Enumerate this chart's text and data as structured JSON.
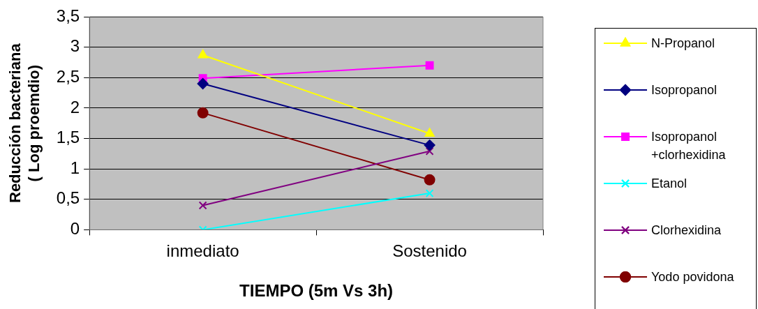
{
  "chart_data": {
    "type": "line",
    "xlabel": "TIEMPO (5m Vs 3h)",
    "ylabel": "Reducción bacteriana\n( Log proemdio)",
    "categories": [
      "inmediato",
      "Sostenido"
    ],
    "ylim": [
      0,
      3.5
    ],
    "yticks": [
      0,
      {
        "value": 0.5,
        "label": "0,5"
      },
      1,
      {
        "value": 1.5,
        "label": "1,5"
      },
      2,
      {
        "value": 2.5,
        "label": "2,5"
      },
      3,
      {
        "value": 3.5,
        "label": "3,5"
      }
    ],
    "grid": "y",
    "legend": "right",
    "line_style": "solid",
    "series": [
      {
        "name": "N-Propanol",
        "color": "#ffff00",
        "marker": "triangle",
        "values": [
          2.87,
          1.58
        ]
      },
      {
        "name": "Isopropanol",
        "color": "#000080",
        "marker": "diamond",
        "values": [
          2.4,
          1.39
        ]
      },
      {
        "name": "Isopropanol +clorhexidina",
        "color": "#ff00ff",
        "marker": "square",
        "values": [
          2.49,
          2.7
        ]
      },
      {
        "name": "Etanol",
        "color": "#00ffff",
        "marker": "cross",
        "values": [
          0,
          0.6
        ]
      },
      {
        "name": "Clorhexidina",
        "color": "#800080",
        "marker": "cross",
        "values": [
          0.4,
          1.29
        ]
      },
      {
        "name": "Yodo povidona",
        "color": "#800000",
        "marker": "circle",
        "values": [
          1.92,
          0.82
        ]
      }
    ]
  }
}
